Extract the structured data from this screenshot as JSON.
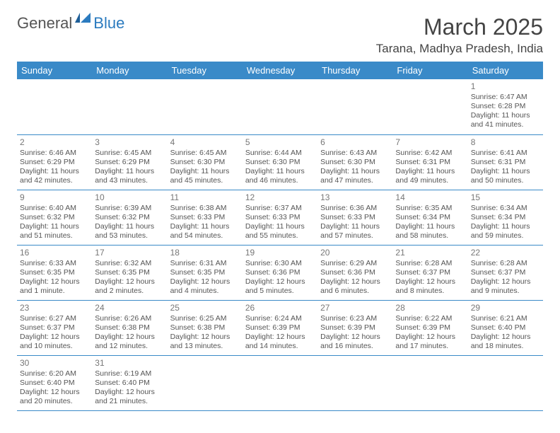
{
  "brand": {
    "general": "General",
    "blue": "Blue"
  },
  "title": "March 2025",
  "location": "Tarana, Madhya Pradesh, India",
  "colors": {
    "header_bg": "#3a8ac8",
    "header_fg": "#ffffff",
    "text": "#555555",
    "brand_blue": "#2b7bbf",
    "border": "#3a8ac8"
  },
  "weekdays": [
    "Sunday",
    "Monday",
    "Tuesday",
    "Wednesday",
    "Thursday",
    "Friday",
    "Saturday"
  ],
  "weeks": [
    [
      null,
      null,
      null,
      null,
      null,
      null,
      {
        "d": "1",
        "sr": "Sunrise: 6:47 AM",
        "ss": "Sunset: 6:28 PM",
        "dl": "Daylight: 11 hours and 41 minutes."
      }
    ],
    [
      {
        "d": "2",
        "sr": "Sunrise: 6:46 AM",
        "ss": "Sunset: 6:29 PM",
        "dl": "Daylight: 11 hours and 42 minutes."
      },
      {
        "d": "3",
        "sr": "Sunrise: 6:45 AM",
        "ss": "Sunset: 6:29 PM",
        "dl": "Daylight: 11 hours and 43 minutes."
      },
      {
        "d": "4",
        "sr": "Sunrise: 6:45 AM",
        "ss": "Sunset: 6:30 PM",
        "dl": "Daylight: 11 hours and 45 minutes."
      },
      {
        "d": "5",
        "sr": "Sunrise: 6:44 AM",
        "ss": "Sunset: 6:30 PM",
        "dl": "Daylight: 11 hours and 46 minutes."
      },
      {
        "d": "6",
        "sr": "Sunrise: 6:43 AM",
        "ss": "Sunset: 6:30 PM",
        "dl": "Daylight: 11 hours and 47 minutes."
      },
      {
        "d": "7",
        "sr": "Sunrise: 6:42 AM",
        "ss": "Sunset: 6:31 PM",
        "dl": "Daylight: 11 hours and 49 minutes."
      },
      {
        "d": "8",
        "sr": "Sunrise: 6:41 AM",
        "ss": "Sunset: 6:31 PM",
        "dl": "Daylight: 11 hours and 50 minutes."
      }
    ],
    [
      {
        "d": "9",
        "sr": "Sunrise: 6:40 AM",
        "ss": "Sunset: 6:32 PM",
        "dl": "Daylight: 11 hours and 51 minutes."
      },
      {
        "d": "10",
        "sr": "Sunrise: 6:39 AM",
        "ss": "Sunset: 6:32 PM",
        "dl": "Daylight: 11 hours and 53 minutes."
      },
      {
        "d": "11",
        "sr": "Sunrise: 6:38 AM",
        "ss": "Sunset: 6:33 PM",
        "dl": "Daylight: 11 hours and 54 minutes."
      },
      {
        "d": "12",
        "sr": "Sunrise: 6:37 AM",
        "ss": "Sunset: 6:33 PM",
        "dl": "Daylight: 11 hours and 55 minutes."
      },
      {
        "d": "13",
        "sr": "Sunrise: 6:36 AM",
        "ss": "Sunset: 6:33 PM",
        "dl": "Daylight: 11 hours and 57 minutes."
      },
      {
        "d": "14",
        "sr": "Sunrise: 6:35 AM",
        "ss": "Sunset: 6:34 PM",
        "dl": "Daylight: 11 hours and 58 minutes."
      },
      {
        "d": "15",
        "sr": "Sunrise: 6:34 AM",
        "ss": "Sunset: 6:34 PM",
        "dl": "Daylight: 11 hours and 59 minutes."
      }
    ],
    [
      {
        "d": "16",
        "sr": "Sunrise: 6:33 AM",
        "ss": "Sunset: 6:35 PM",
        "dl": "Daylight: 12 hours and 1 minute."
      },
      {
        "d": "17",
        "sr": "Sunrise: 6:32 AM",
        "ss": "Sunset: 6:35 PM",
        "dl": "Daylight: 12 hours and 2 minutes."
      },
      {
        "d": "18",
        "sr": "Sunrise: 6:31 AM",
        "ss": "Sunset: 6:35 PM",
        "dl": "Daylight: 12 hours and 4 minutes."
      },
      {
        "d": "19",
        "sr": "Sunrise: 6:30 AM",
        "ss": "Sunset: 6:36 PM",
        "dl": "Daylight: 12 hours and 5 minutes."
      },
      {
        "d": "20",
        "sr": "Sunrise: 6:29 AM",
        "ss": "Sunset: 6:36 PM",
        "dl": "Daylight: 12 hours and 6 minutes."
      },
      {
        "d": "21",
        "sr": "Sunrise: 6:28 AM",
        "ss": "Sunset: 6:37 PM",
        "dl": "Daylight: 12 hours and 8 minutes."
      },
      {
        "d": "22",
        "sr": "Sunrise: 6:28 AM",
        "ss": "Sunset: 6:37 PM",
        "dl": "Daylight: 12 hours and 9 minutes."
      }
    ],
    [
      {
        "d": "23",
        "sr": "Sunrise: 6:27 AM",
        "ss": "Sunset: 6:37 PM",
        "dl": "Daylight: 12 hours and 10 minutes."
      },
      {
        "d": "24",
        "sr": "Sunrise: 6:26 AM",
        "ss": "Sunset: 6:38 PM",
        "dl": "Daylight: 12 hours and 12 minutes."
      },
      {
        "d": "25",
        "sr": "Sunrise: 6:25 AM",
        "ss": "Sunset: 6:38 PM",
        "dl": "Daylight: 12 hours and 13 minutes."
      },
      {
        "d": "26",
        "sr": "Sunrise: 6:24 AM",
        "ss": "Sunset: 6:39 PM",
        "dl": "Daylight: 12 hours and 14 minutes."
      },
      {
        "d": "27",
        "sr": "Sunrise: 6:23 AM",
        "ss": "Sunset: 6:39 PM",
        "dl": "Daylight: 12 hours and 16 minutes."
      },
      {
        "d": "28",
        "sr": "Sunrise: 6:22 AM",
        "ss": "Sunset: 6:39 PM",
        "dl": "Daylight: 12 hours and 17 minutes."
      },
      {
        "d": "29",
        "sr": "Sunrise: 6:21 AM",
        "ss": "Sunset: 6:40 PM",
        "dl": "Daylight: 12 hours and 18 minutes."
      }
    ],
    [
      {
        "d": "30",
        "sr": "Sunrise: 6:20 AM",
        "ss": "Sunset: 6:40 PM",
        "dl": "Daylight: 12 hours and 20 minutes."
      },
      {
        "d": "31",
        "sr": "Sunrise: 6:19 AM",
        "ss": "Sunset: 6:40 PM",
        "dl": "Daylight: 12 hours and 21 minutes."
      },
      null,
      null,
      null,
      null,
      null
    ]
  ]
}
